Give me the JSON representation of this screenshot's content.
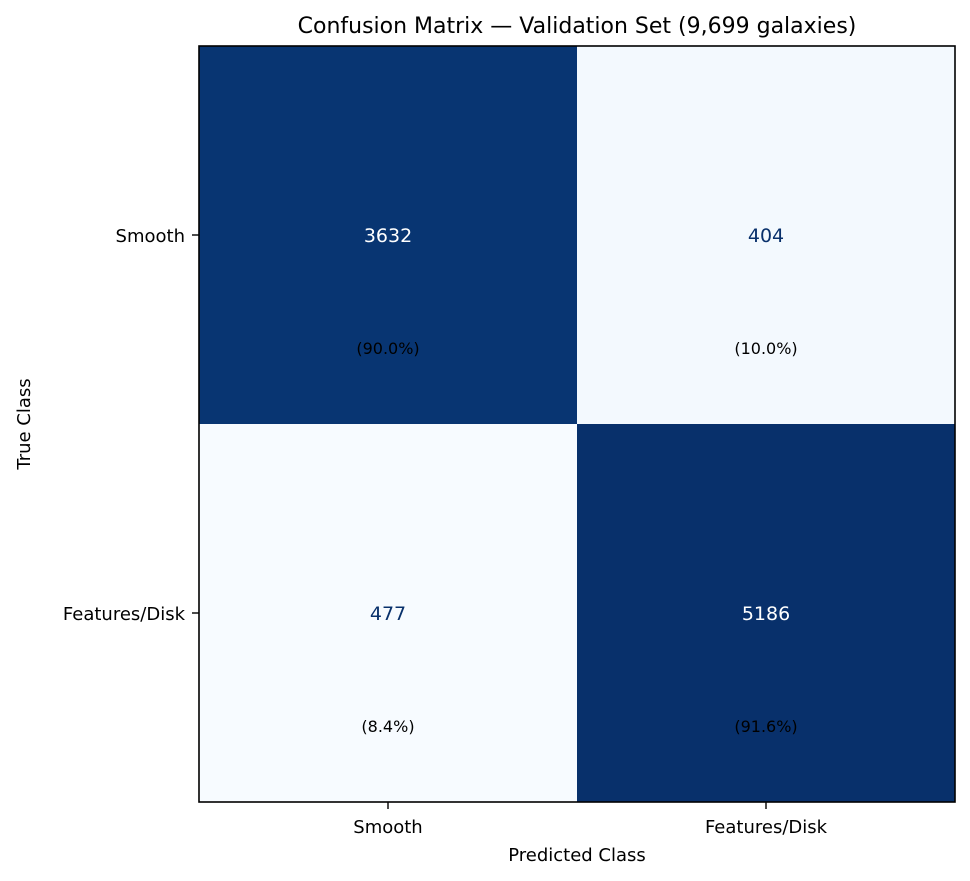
{
  "chart_data": {
    "type": "heatmap",
    "title": "Confusion Matrix — Validation Set (9,699 galaxies)",
    "xlabel": "Predicted Class",
    "ylabel": "True Class",
    "x_categories": [
      "Smooth",
      "Features/Disk"
    ],
    "y_categories": [
      "Smooth",
      "Features/Disk"
    ],
    "values": [
      [
        3632,
        404
      ],
      [
        477,
        5186
      ]
    ],
    "cell_labels": [
      [
        {
          "count": "3632",
          "pct": "(90.0%)"
        },
        {
          "count": "404",
          "pct": "(10.0%)"
        }
      ],
      [
        {
          "count": "477",
          "pct": "(8.4%)"
        },
        {
          "count": "5186",
          "pct": "(91.6%)"
        }
      ]
    ],
    "colormap": "Blues",
    "colors": {
      "low": "#f7fbff",
      "high": "#08306b",
      "text_dark": "#08306b",
      "text_light": "#ffffff"
    },
    "colorbar": false,
    "grid": false
  }
}
